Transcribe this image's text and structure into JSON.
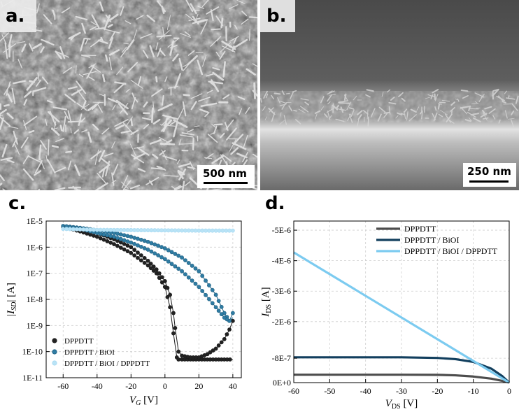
{
  "panels": {
    "a": {
      "letter": "a.",
      "scale_bar": "500 nm"
    },
    "b": {
      "letter": "b.",
      "scale_bar": "250 nm"
    },
    "c": {
      "letter": "c."
    },
    "d": {
      "letter": "d."
    }
  },
  "chart_data": [
    {
      "panel": "c",
      "type": "line",
      "xlabel": "V_G [V]",
      "ylabel": "|I_SD| [A]",
      "xlim": [
        -70,
        45
      ],
      "ylim": [
        1e-11,
        1e-05
      ],
      "yscale": "log",
      "xticks": [
        -60,
        -40,
        -20,
        0,
        20,
        40
      ],
      "yticks": [
        "1E-11",
        "1E-10",
        "1E-9",
        "1E-8",
        "1E-7",
        "1E-6",
        "1E-5"
      ],
      "grid": true,
      "legend_position": "lower-left",
      "colors": {
        "DPPDTT": "#1a1a1a",
        "DPPDTT / BiOI": "#1f5f80",
        "DPPDTT / BiOI / DPPDTT": "#a8daf2"
      },
      "series": [
        {
          "name": "DPPDTT",
          "forward": {
            "x": [
              -60,
              -50,
              -40,
              -30,
              -20,
              -10,
              -5,
              0,
              3,
              5,
              7,
              8,
              10,
              15,
              20,
              25,
              30,
              35,
              40
            ],
            "y": [
              6e-06,
              4e-06,
              2.5e-06,
              1.3e-06,
              6e-07,
              2e-07,
              1e-07,
              3e-08,
              5e-09,
              5e-10,
              6e-11,
              5e-11,
              5e-11,
              5e-11,
              5e-11,
              5e-11,
              5e-11,
              5e-11,
              5e-11
            ]
          },
          "reverse": {
            "x": [
              40,
              38,
              35,
              30,
              25,
              20,
              15,
              10,
              8,
              6,
              5,
              3,
              0,
              -5,
              -10,
              -20,
              -30,
              -40,
              -50,
              -60
            ],
            "y": [
              1.5e-09,
              7e-10,
              3e-10,
              1.3e-10,
              8e-11,
              6e-11,
              6e-11,
              7e-11,
              1e-10,
              8e-10,
              3e-09,
              1.5e-08,
              5e-08,
              1.4e-07,
              3e-07,
              1e-06,
              2e-06,
              3.5e-06,
              5e-06,
              6e-06
            ]
          }
        },
        {
          "name": "DPPDTT / BiOI",
          "forward": {
            "x": [
              -60,
              -50,
              -40,
              -30,
              -20,
              -10,
              0,
              10,
              20,
              30,
              35,
              38,
              40
            ],
            "y": [
              6.5e-06,
              5.5e-06,
              4.5e-06,
              3.5e-06,
              2.5e-06,
              1.6e-06,
              9e-07,
              4e-07,
              1.2e-07,
              1.5e-08,
              3e-09,
              1.5e-09,
              2e-09
            ]
          },
          "reverse": {
            "x": [
              40,
              38,
              35,
              30,
              20,
              10,
              0,
              -10,
              -20,
              -30,
              -40,
              -50,
              -60
            ],
            "y": [
              3e-09,
              1.5e-09,
              2e-09,
              5e-09,
              3e-08,
              1.2e-07,
              3.5e-07,
              8e-07,
              1.5e-06,
              2.5e-06,
              3.5e-06,
              5e-06,
              6.5e-06
            ]
          }
        },
        {
          "name": "DPPDTT / BiOI / DPPDTT",
          "forward": {
            "x": [
              -60,
              -40,
              -20,
              0,
              20,
              40
            ],
            "y": [
              5e-06,
              4.6e-06,
              4.5e-06,
              4.4e-06,
              4.3e-06,
              4.3e-06
            ]
          },
          "reverse": {
            "x": [
              40,
              20,
              0,
              -20,
              -40,
              -60
            ],
            "y": [
              4.3e-06,
              4.3e-06,
              4.4e-06,
              4.5e-06,
              4.6e-06,
              5e-06
            ]
          }
        }
      ]
    },
    {
      "panel": "d",
      "type": "line",
      "xlabel": "V_DS [V]",
      "ylabel": "I_DS [A]",
      "xlim": [
        -60,
        0
      ],
      "ylim": [
        0,
        -5e-06
      ],
      "xticks": [
        -60,
        -50,
        -40,
        -30,
        -20,
        -10,
        0
      ],
      "yticks": [
        "0E+0",
        "-8E-7",
        "-2E-6",
        "-3E-6",
        "-4E-6",
        "-5E-6"
      ],
      "ytick_values": [
        0,
        -8e-07,
        -2e-06,
        -3e-06,
        -4e-06,
        -5e-06
      ],
      "grid": true,
      "legend_position": "top-right",
      "colors": {
        "DPPDTT": "#4d4d4d",
        "DPPDTT / BiOI": "#123f5e",
        "DPPDTT / BiOI / DPPDTT": "#7ccbf0"
      },
      "series": [
        {
          "name": "DPPDTT",
          "x": [
            -60,
            -50,
            -40,
            -30,
            -20,
            -15,
            -10,
            -5,
            -2,
            0
          ],
          "y": [
            -2.6e-07,
            -2.6e-07,
            -2.6e-07,
            -2.6e-07,
            -2.55e-07,
            -2.4e-07,
            -2e-07,
            -1.3e-07,
            -6e-08,
            0
          ]
        },
        {
          "name": "DPPDTT / BiOI",
          "x": [
            -60,
            -50,
            -40,
            -30,
            -20,
            -15,
            -10,
            -5,
            -2,
            0
          ],
          "y": [
            -8.3e-07,
            -8.3e-07,
            -8.3e-07,
            -8.3e-07,
            -8.1e-07,
            -7.7e-07,
            -6.8e-07,
            -4.6e-07,
            -2.2e-07,
            0
          ]
        },
        {
          "name": "DPPDTT / BiOI / DPPDTT",
          "x": [
            -60,
            0
          ],
          "y": [
            -4.27e-06,
            0
          ]
        }
      ]
    }
  ]
}
